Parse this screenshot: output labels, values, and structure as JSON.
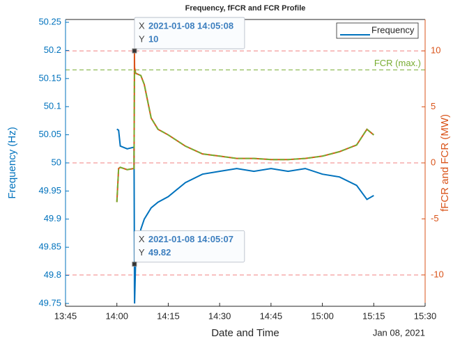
{
  "chart_data": {
    "type": "line",
    "title": "Frequency, fFCR and FCR Profile",
    "x_label": "Date and Time",
    "x_date_label": "Jan 08, 2021",
    "y_label": "Frequency (Hz)",
    "y2_label": "fFCR and FCR (MW)",
    "x": [
      "14:00:00",
      "14:00:30",
      "14:01:00",
      "14:03:00",
      "14:05:00",
      "14:05:07",
      "14:05:08",
      "14:05:10",
      "14:05:30",
      "14:07:00",
      "14:08:00",
      "14:10:00",
      "14:12:00",
      "14:15:00",
      "14:20:00",
      "14:25:00",
      "14:30:00",
      "14:35:00",
      "14:40:00",
      "14:45:00",
      "14:50:00",
      "14:55:00",
      "15:00:00",
      "15:05:00",
      "15:10:00",
      "15:13:00",
      "15:15:00"
    ],
    "series": [
      {
        "name": "Frequency",
        "color": "#0072bd",
        "axis": "y",
        "values": [
          50.06,
          50.058,
          50.03,
          50.025,
          50.028,
          49.82,
          49.78,
          49.75,
          49.83,
          49.882,
          49.9,
          49.92,
          49.93,
          49.94,
          49.965,
          49.98,
          49.985,
          49.99,
          49.985,
          49.99,
          49.985,
          49.99,
          49.98,
          49.975,
          49.96,
          49.935,
          49.942
        ]
      },
      {
        "color": "#d95319",
        "axis": "y2",
        "values": [
          -3.5,
          -0.5,
          -0.4,
          -0.6,
          -0.5,
          8,
          10,
          8.5,
          8.0,
          7.8,
          7.0,
          4,
          3,
          2.5,
          1.5,
          0.8,
          0.6,
          0.4,
          0.4,
          0.3,
          0.3,
          0.4,
          0.6,
          1.0,
          1.6,
          3.0,
          2.5
        ]
      },
      {
        "color": "#77ac30",
        "axis": "y2",
        "dashed": true,
        "values": [
          -3.5,
          -0.5,
          -0.4,
          -0.6,
          -0.5,
          8,
          8.2,
          8.2,
          8.0,
          7.8,
          7.0,
          4,
          3,
          2.5,
          1.5,
          0.8,
          0.6,
          0.4,
          0.4,
          0.3,
          0.3,
          0.4,
          0.6,
          1.0,
          1.6,
          3.0,
          2.5
        ]
      }
    ],
    "xlim": [
      "13:45:00",
      "15:30:00"
    ],
    "xticks": [
      {
        "value": "13:45:00",
        "label": "13:45"
      },
      {
        "value": "14:00:00",
        "label": "14:00"
      },
      {
        "value": "14:15:00",
        "label": "14:15"
      },
      {
        "value": "14:30:00",
        "label": "14:30"
      },
      {
        "value": "14:45:00",
        "label": "14:45"
      },
      {
        "value": "15:00:00",
        "label": "15:00"
      },
      {
        "value": "15:15:00",
        "label": "15:15"
      },
      {
        "value": "15:30:00",
        "label": "15:30"
      }
    ],
    "ylim": [
      49.745,
      50.255
    ],
    "yticks": [
      49.75,
      49.8,
      49.85,
      49.9,
      49.95,
      50,
      50.05,
      50.1,
      50.15,
      50.2,
      50.25
    ],
    "y2lim": [
      -12.8,
      12.8
    ],
    "y2ticks": [
      -10,
      -5,
      0,
      5,
      10
    ],
    "reference_lines": [
      {
        "value": 10,
        "color": "#f08080"
      },
      {
        "value": 0,
        "color": "#f08080"
      },
      {
        "value": -10,
        "color": "#f08080"
      },
      {
        "value": 8.3,
        "color": "#77ac30",
        "label": "FCR (max.)"
      }
    ],
    "datatips": [
      {
        "x_label": "X",
        "x": "2021-01-08 14:05:08",
        "y_label": "Y",
        "y": 10,
        "axis": "y2"
      },
      {
        "x_label": "X",
        "x": "2021-01-08 14:05:07",
        "y_label": "Y",
        "y": 49.82,
        "axis": "y"
      }
    ],
    "legend": "upper right"
  }
}
